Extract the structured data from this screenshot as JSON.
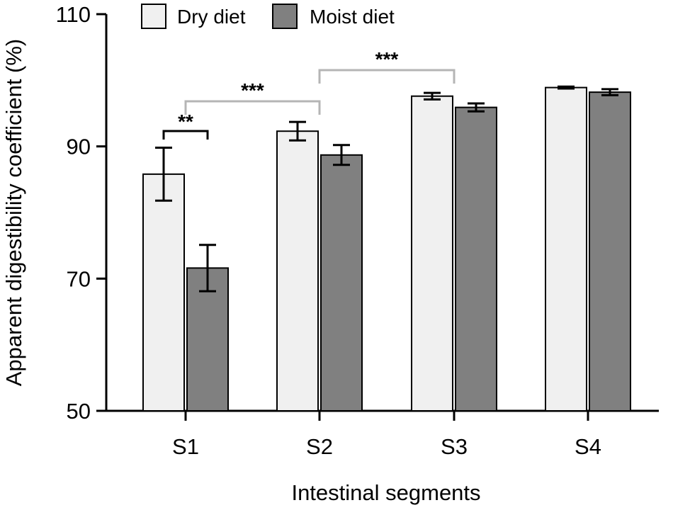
{
  "chart_data": {
    "type": "bar",
    "title": "",
    "xlabel": "Intestinal segments",
    "ylabel": "Apparent digestibility coefficient (%)",
    "ylim": [
      50,
      110
    ],
    "yticks": [
      50,
      70,
      90,
      110
    ],
    "categories": [
      "S1",
      "S2",
      "S3",
      "S4"
    ],
    "series": [
      {
        "name": "Dry diet",
        "color": "#f0f0f0",
        "values": [
          85.8,
          92.3,
          97.6,
          98.9
        ],
        "errors": [
          4.0,
          1.4,
          0.5,
          0.15
        ]
      },
      {
        "name": "Moist diet",
        "color": "#808080",
        "values": [
          71.6,
          88.7,
          95.9,
          98.2
        ],
        "errors": [
          3.5,
          1.5,
          0.6,
          0.45
        ]
      }
    ],
    "significance": [
      {
        "label": "**",
        "type": "within",
        "category": 0
      },
      {
        "label": "***",
        "type": "between",
        "from": 0,
        "to": 1
      },
      {
        "label": "***",
        "type": "between",
        "from": 1,
        "to": 2
      }
    ],
    "legend_position": "top"
  }
}
